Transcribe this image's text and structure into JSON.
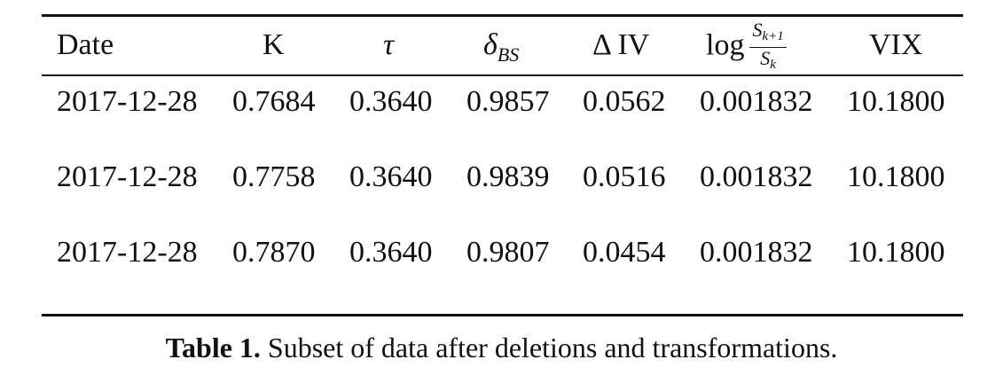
{
  "table": {
    "headers": {
      "date": "Date",
      "k": "K",
      "tau": "τ",
      "delta_sym": "δ",
      "delta_sub": "BS",
      "div": "Δ IV",
      "log": "log",
      "frac_num_base": "S",
      "frac_num_sub": "k+1",
      "frac_den_base": "S",
      "frac_den_sub": "k",
      "vix": "VIX"
    },
    "rows": [
      [
        "2017-12-28",
        "0.7684",
        "0.3640",
        "0.9857",
        "0.0562",
        "0.001832",
        "10.1800"
      ],
      [
        "2017-12-28",
        "0.7758",
        "0.3640",
        "0.9839",
        "0.0516",
        "0.001832",
        "10.1800"
      ],
      [
        "2017-12-28",
        "0.7870",
        "0.3640",
        "0.9807",
        "0.0454",
        "0.001832",
        "10.1800"
      ]
    ]
  },
  "caption": {
    "label": "Table 1.",
    "text": " Subset of data after deletions and transformations."
  }
}
